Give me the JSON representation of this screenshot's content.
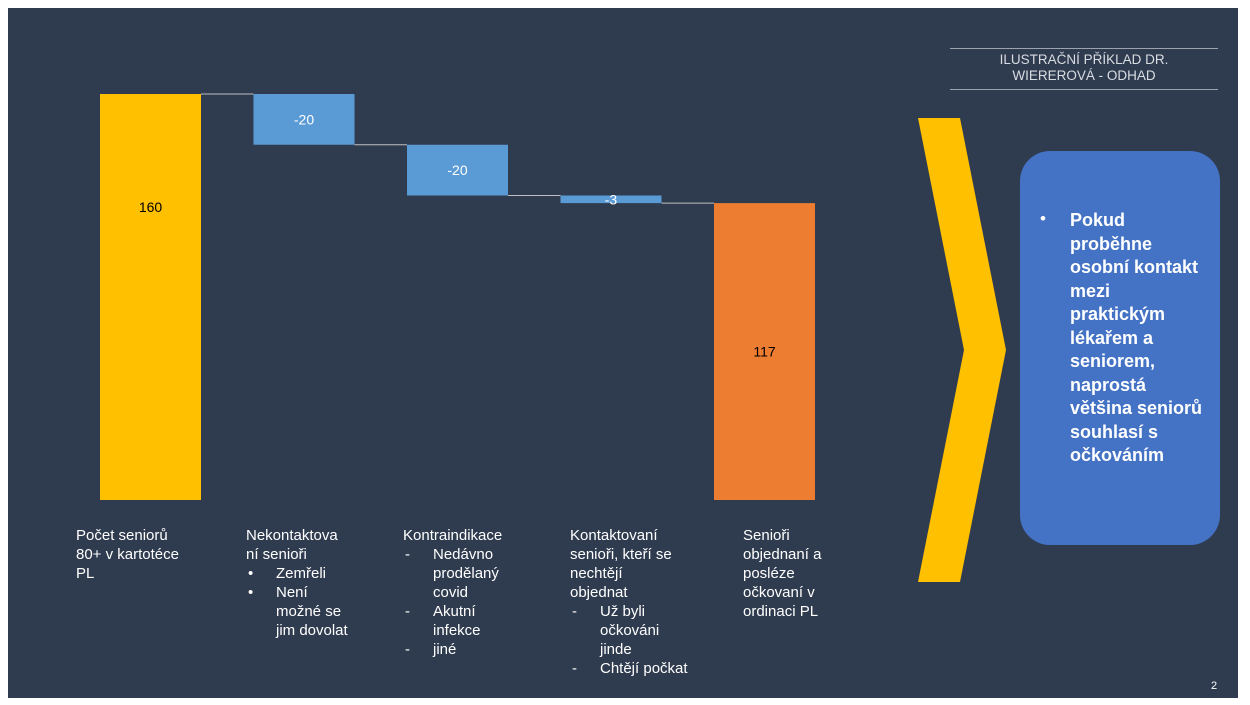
{
  "colors": {
    "background": "#2f3b4e",
    "total_bar": "#ffc000",
    "decrease_bar": "#5b9bd5",
    "result_bar": "#ed7d31",
    "connector": "#bfbfbf",
    "chevron": "#ffc000",
    "callout": "#4472c4"
  },
  "chart_data": {
    "type": "bar",
    "subtype": "waterfall",
    "categories": [
      "Počet seniorů 80+ v kartotéce PL",
      "Nekontaktovaní senioři",
      "Kontraindikace",
      "Kontaktovaní senioři, kteří se nechtějí objednat",
      "Senioři objednaní a posléze očkovaní v ordinaci PL"
    ],
    "values": [
      160,
      -20,
      -20,
      -3,
      117
    ],
    "data_labels": [
      "160",
      "-20",
      "-20",
      "-3",
      "117"
    ],
    "bar_kinds": [
      "total",
      "decrease",
      "decrease",
      "decrease",
      "total"
    ],
    "ylim": [
      0,
      160
    ],
    "grid": false,
    "legend": "none"
  },
  "category_labels": [
    {
      "label": "Počet seniorů\n80+ v kartotéce\nPL",
      "items": []
    },
    {
      "label": "Nekontaktova\nní senioři",
      "items": [
        {
          "marker": "•",
          "text": "Zemřeli"
        },
        {
          "marker": "•",
          "text": "Není\nmožné se\njim dovolat"
        }
      ]
    },
    {
      "label": "Kontraindikace",
      "items": [
        {
          "marker": "-",
          "text": "Nedávno\nprodělaný\ncovid"
        },
        {
          "marker": "-",
          "text": "Akutní\ninfekce"
        },
        {
          "marker": "-",
          "text": "jiné"
        }
      ]
    },
    {
      "label": "Kontaktovaní\nsenioři, kteří se\nnechtějí\nobjednat",
      "items": [
        {
          "marker": "-",
          "text": "Už byli\nočkováni\njinde"
        },
        {
          "marker": "-",
          "text": "Chtějí počkat"
        }
      ]
    },
    {
      "label": "Senioři\nobjednaní a\nposléze\nočkovaní v\nordinaci PL",
      "items": []
    }
  ],
  "note": "ILUSTRAČNÍ PŘÍKLAD DR.\nWIEREROVÁ - ODHAD",
  "callout": {
    "bullet": "•",
    "text": "Pokud\nproběhne\nosobní kontakt\nmezi\npraktickým\nlékařem a\nseniorem,\nnaprostá\nvětšina seniorů\nsouhlasí s\nočkováním"
  },
  "page_number": "2"
}
